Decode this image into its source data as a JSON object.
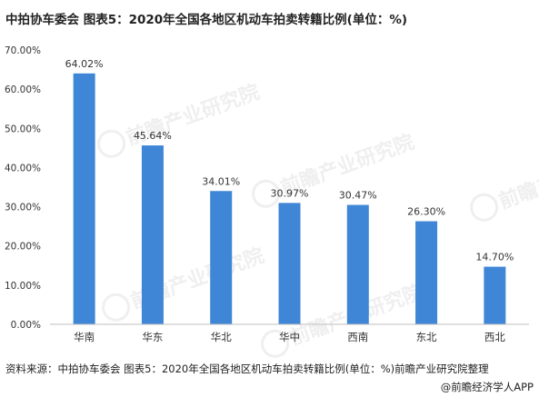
{
  "header": {
    "title": "中拍协车委会 图表5：2020年全国各地区机动车拍卖转籍比例(单位：%)"
  },
  "footer": {
    "source": "资料来源：中拍协车委会 图表5：2020年全国各地区机动车拍卖转籍比例(单位：%)前瞻产业研究院整理",
    "credit": "@前瞻经济学人APP"
  },
  "watermark": {
    "text": "前瞻产业研究院"
  },
  "chart_data": {
    "type": "bar",
    "title": "",
    "categories": [
      "华南",
      "华东",
      "华北",
      "华中",
      "西南",
      "东北",
      "西北"
    ],
    "values": [
      64.02,
      45.64,
      34.01,
      30.97,
      30.47,
      26.3,
      14.7
    ],
    "value_labels": [
      "64.02%",
      "45.64%",
      "34.01%",
      "30.97%",
      "30.47%",
      "26.30%",
      "14.70%"
    ],
    "yticks": [
      "0.00%",
      "10.00%",
      "20.00%",
      "30.00%",
      "40.00%",
      "50.00%",
      "60.00%",
      "70.00%"
    ],
    "ylim": [
      0,
      70
    ],
    "ytick_step": 10,
    "grid": false,
    "xlabel": "",
    "ylabel": "",
    "colors": {
      "bar": "#3f86d6",
      "axis": "#bfbfbf",
      "text": "#333333"
    }
  }
}
